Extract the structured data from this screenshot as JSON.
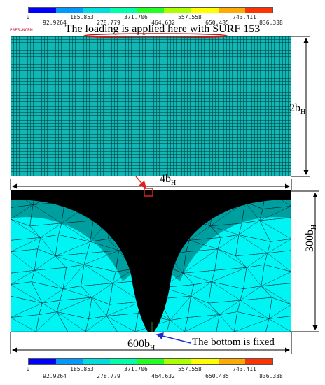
{
  "colorbar": {
    "colors": [
      "#0000ff",
      "#0099ff",
      "#00dddd",
      "#00ffaa",
      "#22ff22",
      "#aaff00",
      "#ffff00",
      "#ffaa00",
      "#ff3300"
    ],
    "row1": [
      "0",
      "185.853",
      "371.706",
      "557.558",
      "743.411"
    ],
    "row2": [
      "92.9264",
      "278.779",
      "464.632",
      "650.485",
      "836.338"
    ]
  },
  "annotations": {
    "title": "The loading  is applied here with SURF 153",
    "pres_norm": "PRES-NORM",
    "height_top": "2b",
    "height_top_sub": "H",
    "width_top": "4b",
    "width_top_sub": "H",
    "height_bottom": "300b",
    "height_bottom_sub": "H",
    "width_bottom": "600b",
    "width_bottom_sub": "H",
    "bottom_note": "The bottom is fixed"
  },
  "colors": {
    "mesh_fine": "#10b7b5",
    "mesh_coarse": "#00f4f4",
    "mesh_dense": "#000000",
    "arrow_red": "#e02020",
    "arrow_blue": "#1a2bd6",
    "loading_ellipse": "#d01010"
  }
}
